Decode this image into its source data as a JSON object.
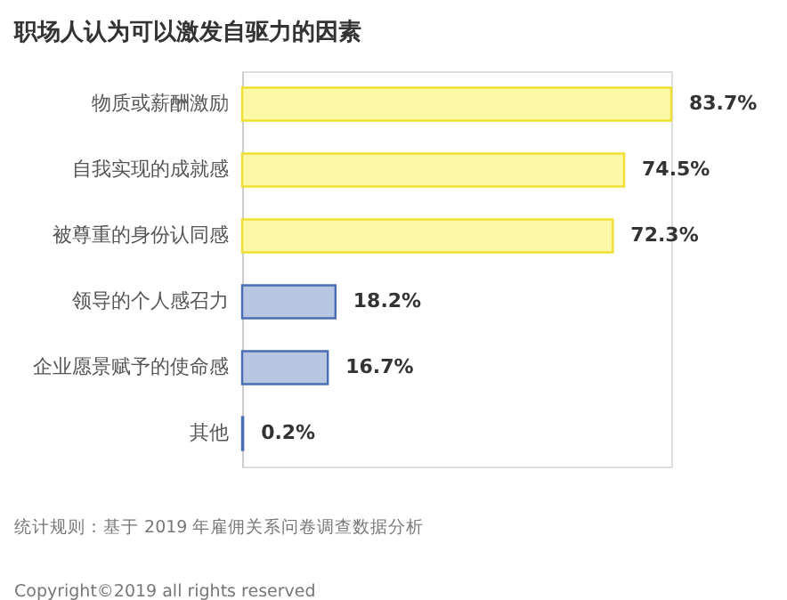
{
  "chart_data": {
    "type": "bar",
    "orientation": "horizontal",
    "title": "职场人认为可以激发自驱力的因素",
    "categories": [
      "物质或薪酬激励",
      "自我实现的成就感",
      "被尊重的身份认同感",
      "领导的个人感召力",
      "企业愿景赋予的使命感",
      "其他"
    ],
    "values": [
      83.7,
      74.5,
      72.3,
      18.2,
      16.7,
      0.2
    ],
    "value_labels": [
      "83.7%",
      "74.5%",
      "72.3%",
      "18.2%",
      "16.7%",
      "0.2%"
    ],
    "colors": [
      "#fdf8a8",
      "#fdf8a8",
      "#fdf8a8",
      "#b8c7e1",
      "#b8c7e1",
      "#b8c7e1"
    ],
    "annotations": [
      "统计规则：基于 2019 年雇佣关系问卷调查数据分析",
      "Copyright©2019 all rights reserved"
    ],
    "grid": false
  }
}
